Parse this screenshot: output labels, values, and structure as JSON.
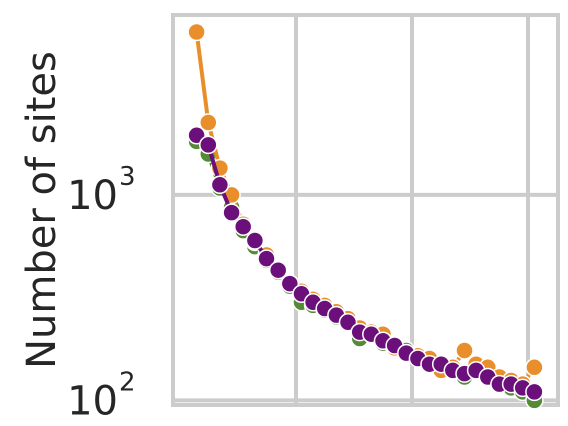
{
  "chart_data": {
    "type": "scatter",
    "ylabel": "Number of sites",
    "yscale": "log",
    "ylim": [
      95,
      7500
    ],
    "xlim": [
      0,
      31
    ],
    "grid": true,
    "legend": "none",
    "yticks": [
      {
        "value": 1000,
        "base": "10",
        "exp": "3"
      },
      {
        "value": 100,
        "base": "10",
        "exp": "2"
      }
    ],
    "x": [
      1,
      2,
      3,
      4,
      5,
      6,
      7,
      8,
      9,
      10,
      11,
      12,
      13,
      14,
      15,
      16,
      17,
      18,
      19,
      20,
      21,
      22,
      23,
      24,
      25,
      26,
      27,
      28,
      29,
      30
    ],
    "series": [
      {
        "color": "#558b35",
        "values": [
          1820,
          1580,
          1080,
          870,
          670,
          560,
          480,
          420,
          360,
          300,
          290,
          275,
          255,
          245,
          200,
          210,
          190,
          180,
          175,
          165,
          160,
          150,
          140,
          130,
          140,
          145,
          125,
          115,
          110,
          100
        ]
      },
      {
        "color": "#e88e2a",
        "values": [
          6200,
          2250,
          1350,
          1000,
          720,
          590,
          510,
          420,
          370,
          340,
          310,
          290,
          270,
          250,
          225,
          215,
          210,
          180,
          170,
          165,
          160,
          140,
          145,
          175,
          150,
          145,
          130,
          125,
          120,
          145
        ]
      },
      {
        "color": "#6b0f7a",
        "values": [
          1950,
          1750,
          1120,
          820,
          700,
          600,
          490,
          430,
          370,
          330,
          300,
          280,
          260,
          240,
          215,
          210,
          195,
          185,
          170,
          160,
          150,
          150,
          140,
          135,
          140,
          130,
          120,
          120,
          115,
          110
        ]
      }
    ]
  }
}
